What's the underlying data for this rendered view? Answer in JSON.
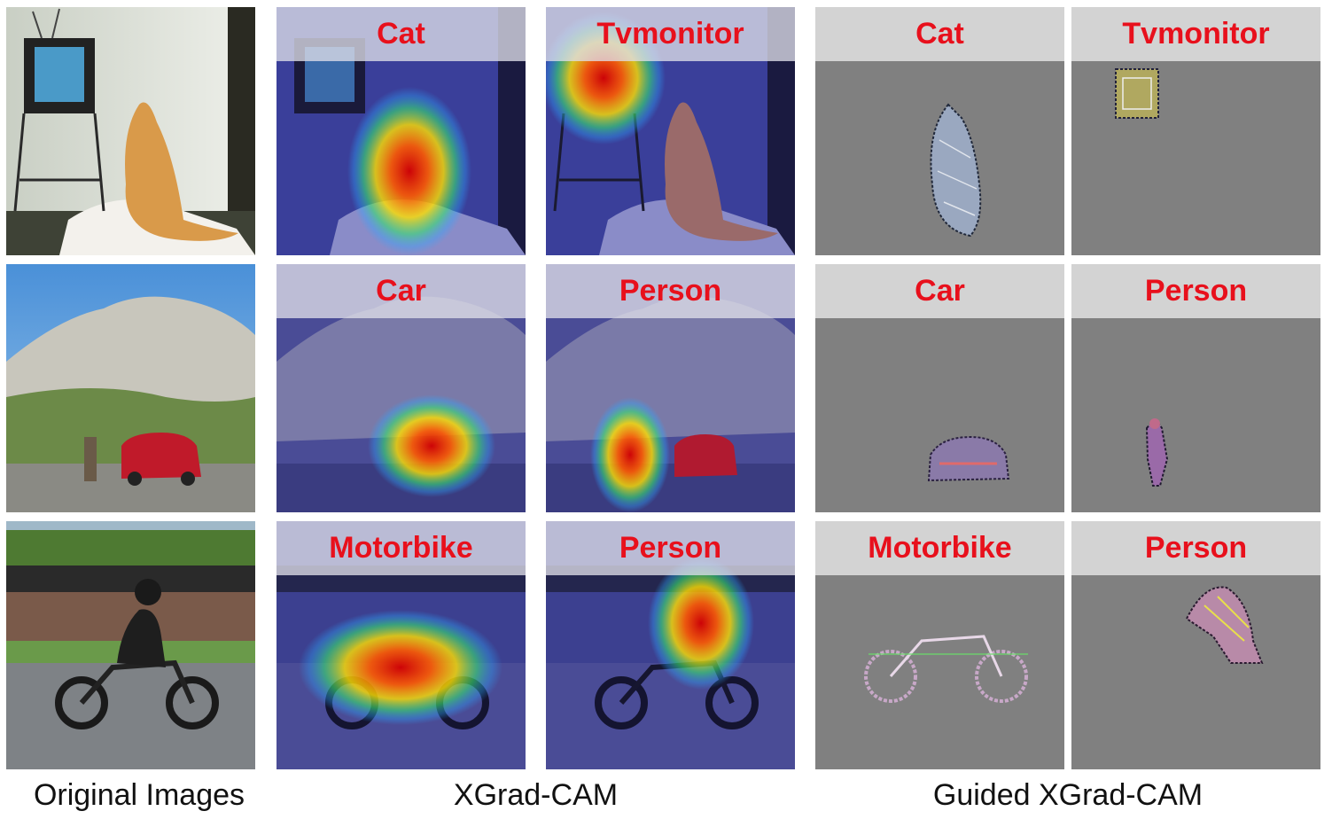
{
  "captions": {
    "original": "Original Images",
    "xgradcam": "XGrad-CAM",
    "guided": "Guided XGrad-CAM"
  },
  "rows": [
    {
      "scene": "cat-tv",
      "labels": [
        "Cat",
        "Tvmonitor"
      ]
    },
    {
      "scene": "mountain-car",
      "labels": [
        "Car",
        "Person"
      ]
    },
    {
      "scene": "motorbike",
      "labels": [
        "Motorbike",
        "Person"
      ]
    }
  ],
  "colors": {
    "label_red": "#e8101c",
    "guided_gray": "#808080",
    "overlay_blue": "#2b2f9e"
  }
}
